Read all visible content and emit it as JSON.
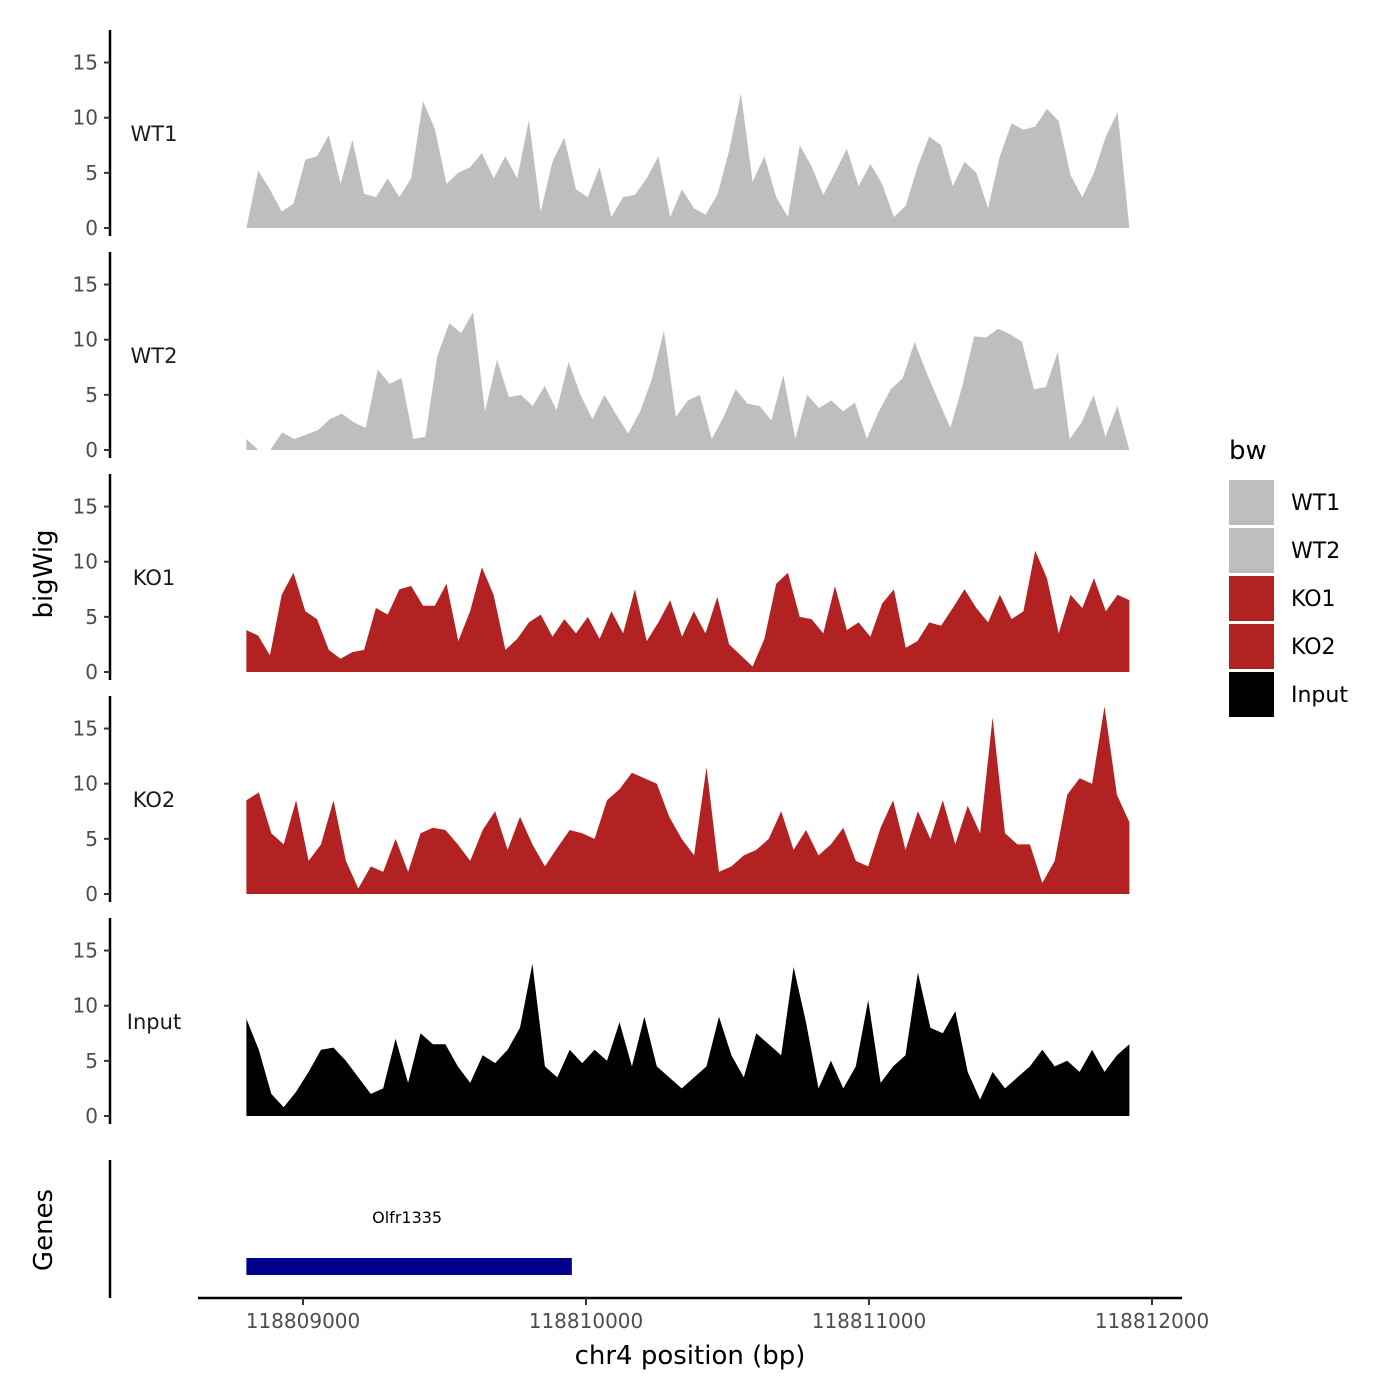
{
  "chart_data": {
    "type": "area",
    "ylabel": "bigWig",
    "xlabel": "chr4 position (bp)",
    "x_range": [
      118808800,
      118811920
    ],
    "x_ticks": [
      118809000,
      118810000,
      118811000,
      118812000
    ],
    "x_tick_labels": [
      "118809000",
      "118810000",
      "118811000",
      "118812000"
    ],
    "ylim": [
      0,
      18
    ],
    "y_ticks": [
      0,
      5,
      10,
      15
    ],
    "y_tick_labels": [
      "0",
      "5",
      "10",
      "15"
    ],
    "legend": {
      "title": "bw",
      "position": "right",
      "entries": [
        {
          "label": "WT1",
          "color": "#bebebe"
        },
        {
          "label": "WT2",
          "color": "#bebebe"
        },
        {
          "label": "KO1",
          "color": "#b22222"
        },
        {
          "label": "KO2",
          "color": "#b22222"
        },
        {
          "label": "Input",
          "color": "#000000"
        }
      ]
    },
    "tracks": [
      {
        "name": "WT1",
        "color": "#bebebe",
        "x_start": 118808800,
        "x_end": 118811920,
        "values": [
          0,
          5.2,
          3.5,
          1.5,
          2.2,
          6.2,
          6.5,
          8.4,
          4.0,
          8.0,
          3.1,
          2.8,
          4.5,
          2.8,
          4.5,
          11.5,
          9.0,
          4.0,
          5.0,
          5.5,
          6.8,
          4.5,
          6.5,
          4.5,
          9.8,
          1.5,
          6.0,
          8.2,
          3.5,
          2.8,
          5.5,
          1.0,
          2.8,
          3.0,
          4.5,
          6.5,
          1.0,
          3.5,
          1.8,
          1.2,
          3.0,
          7.0,
          12.2,
          4.2,
          6.5,
          2.8,
          1.0,
          7.5,
          5.6,
          3.0,
          5.0,
          7.2,
          3.8,
          5.8,
          4.0,
          1.0,
          2.0,
          5.5,
          8.3,
          7.5,
          3.8,
          6.0,
          5.0,
          1.8,
          6.5,
          9.5,
          8.9,
          9.2,
          10.8,
          9.7,
          4.8,
          2.8,
          5.0,
          8.3,
          10.5,
          0
        ]
      },
      {
        "name": "WT2",
        "color": "#bebebe",
        "x_start": 118808800,
        "x_end": 118811920,
        "values": [
          1.0,
          0,
          0,
          1.6,
          1.0,
          1.4,
          1.8,
          2.8,
          3.3,
          2.5,
          2.0,
          7.3,
          6.0,
          6.5,
          1.0,
          1.2,
          8.5,
          11.5,
          10.6,
          12.5,
          3.5,
          8.2,
          4.8,
          5.0,
          4.0,
          5.8,
          3.6,
          8.0,
          5.0,
          2.8,
          5.0,
          3.2,
          1.5,
          3.5,
          6.5,
          10.8,
          3.0,
          4.5,
          5.0,
          1.0,
          3.0,
          5.5,
          4.2,
          4.0,
          2.7,
          6.8,
          1.0,
          5.0,
          3.8,
          4.5,
          3.5,
          4.3,
          1.0,
          3.5,
          5.5,
          6.5,
          9.8,
          7.0,
          4.5,
          2.0,
          5.8,
          10.3,
          10.2,
          11.0,
          10.5,
          9.8,
          5.5,
          5.7,
          8.9,
          1.0,
          2.5,
          5.0,
          1.2,
          4.0,
          0
        ]
      },
      {
        "name": "KO1",
        "color": "#b22222",
        "x_start": 118808800,
        "x_end": 118811920,
        "values": [
          3.8,
          3.3,
          1.5,
          7.0,
          9.0,
          5.5,
          4.8,
          2.0,
          1.2,
          1.8,
          2.0,
          5.8,
          5.2,
          7.5,
          7.8,
          6.0,
          6.0,
          8.0,
          2.8,
          5.5,
          9.5,
          7.0,
          2.0,
          3.0,
          4.5,
          5.2,
          3.2,
          4.8,
          3.5,
          5.0,
          3.0,
          5.5,
          3.5,
          7.5,
          2.8,
          4.5,
          6.5,
          3.2,
          5.5,
          3.5,
          6.8,
          2.5,
          1.5,
          0.5,
          3.0,
          8.0,
          9.0,
          5.0,
          4.8,
          3.5,
          7.8,
          3.8,
          4.5,
          3.2,
          6.2,
          7.5,
          2.2,
          2.8,
          4.5,
          4.2,
          5.8,
          7.5,
          5.8,
          4.5,
          7.0,
          4.8,
          5.5,
          11.0,
          8.5,
          3.5,
          7.0,
          5.8,
          8.5,
          5.5,
          7.0,
          6.5
        ]
      },
      {
        "name": "KO2",
        "color": "#b22222",
        "x_start": 118808800,
        "x_end": 118811920,
        "values": [
          8.5,
          9.2,
          5.5,
          4.5,
          8.5,
          3.0,
          4.5,
          8.5,
          3.0,
          0.5,
          2.5,
          2.0,
          5.0,
          2.0,
          5.5,
          6.0,
          5.8,
          4.5,
          3.0,
          5.8,
          7.5,
          4.0,
          7.0,
          4.5,
          2.5,
          4.2,
          5.8,
          5.5,
          5.0,
          8.5,
          9.5,
          11.0,
          10.5,
          10.0,
          7.0,
          5.0,
          3.5,
          11.5,
          2.0,
          2.5,
          3.5,
          4.0,
          5.0,
          7.5,
          4.0,
          5.8,
          3.5,
          4.5,
          6.0,
          3.0,
          2.5,
          6.0,
          8.5,
          4.0,
          7.5,
          5.0,
          8.5,
          4.5,
          8.0,
          5.5,
          16.0,
          5.5,
          4.5,
          4.5,
          1.0,
          3.0,
          9.0,
          10.5,
          10.0,
          17.0,
          9.0,
          6.5
        ]
      },
      {
        "name": "Input",
        "color": "#000000",
        "x_start": 118808800,
        "x_end": 118811920,
        "values": [
          8.8,
          6.0,
          2.0,
          0.8,
          2.2,
          4.0,
          6.0,
          6.2,
          5.0,
          3.5,
          2.0,
          2.5,
          7.0,
          3.0,
          7.5,
          6.5,
          6.5,
          4.5,
          3.0,
          5.5,
          4.8,
          6.0,
          8.0,
          13.8,
          4.5,
          3.5,
          6.0,
          4.8,
          6.0,
          5.0,
          8.5,
          4.5,
          9.0,
          4.5,
          3.5,
          2.5,
          3.5,
          4.5,
          9.0,
          5.5,
          3.5,
          7.5,
          6.5,
          5.5,
          13.5,
          8.5,
          2.5,
          5.0,
          2.5,
          4.5,
          10.5,
          3.0,
          4.5,
          5.5,
          13.0,
          8.0,
          7.5,
          9.5,
          4.0,
          1.5,
          4.0,
          2.5,
          3.5,
          4.5,
          6.0,
          4.5,
          5.0,
          4.0,
          6.0,
          4.0,
          5.5,
          6.5
        ]
      }
    ],
    "gene_track": {
      "ylabel": "Genes",
      "genes": [
        {
          "name": "Olfr1335",
          "start": 118808800,
          "end": 118809950,
          "color": "#00008b"
        }
      ]
    }
  }
}
